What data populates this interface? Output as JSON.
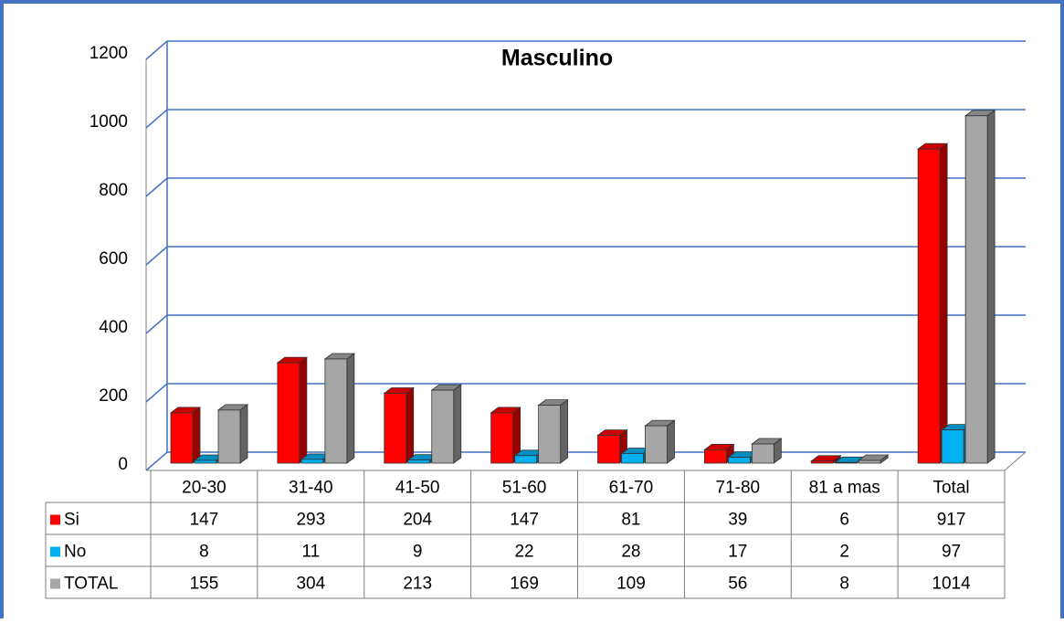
{
  "chart_data": {
    "type": "bar3d",
    "title": "Masculino",
    "categories": [
      "20-30",
      "31-40",
      "41-50",
      "51-60",
      "61-70",
      "71-80",
      "81 a mas",
      "Total"
    ],
    "series": [
      {
        "name": "Si",
        "color": "#ff0000",
        "values": [
          147,
          293,
          204,
          147,
          81,
          39,
          6,
          917
        ]
      },
      {
        "name": "No",
        "color": "#00b0f0",
        "values": [
          8,
          11,
          9,
          22,
          28,
          17,
          2,
          97
        ]
      },
      {
        "name": "TOTAL",
        "color": "#a6a6a6",
        "values": [
          155,
          304,
          213,
          169,
          109,
          56,
          8,
          1014
        ]
      }
    ],
    "ylim": [
      0,
      1200
    ],
    "yticks": [
      0,
      200,
      400,
      600,
      800,
      1000,
      1200
    ],
    "grid": true
  }
}
